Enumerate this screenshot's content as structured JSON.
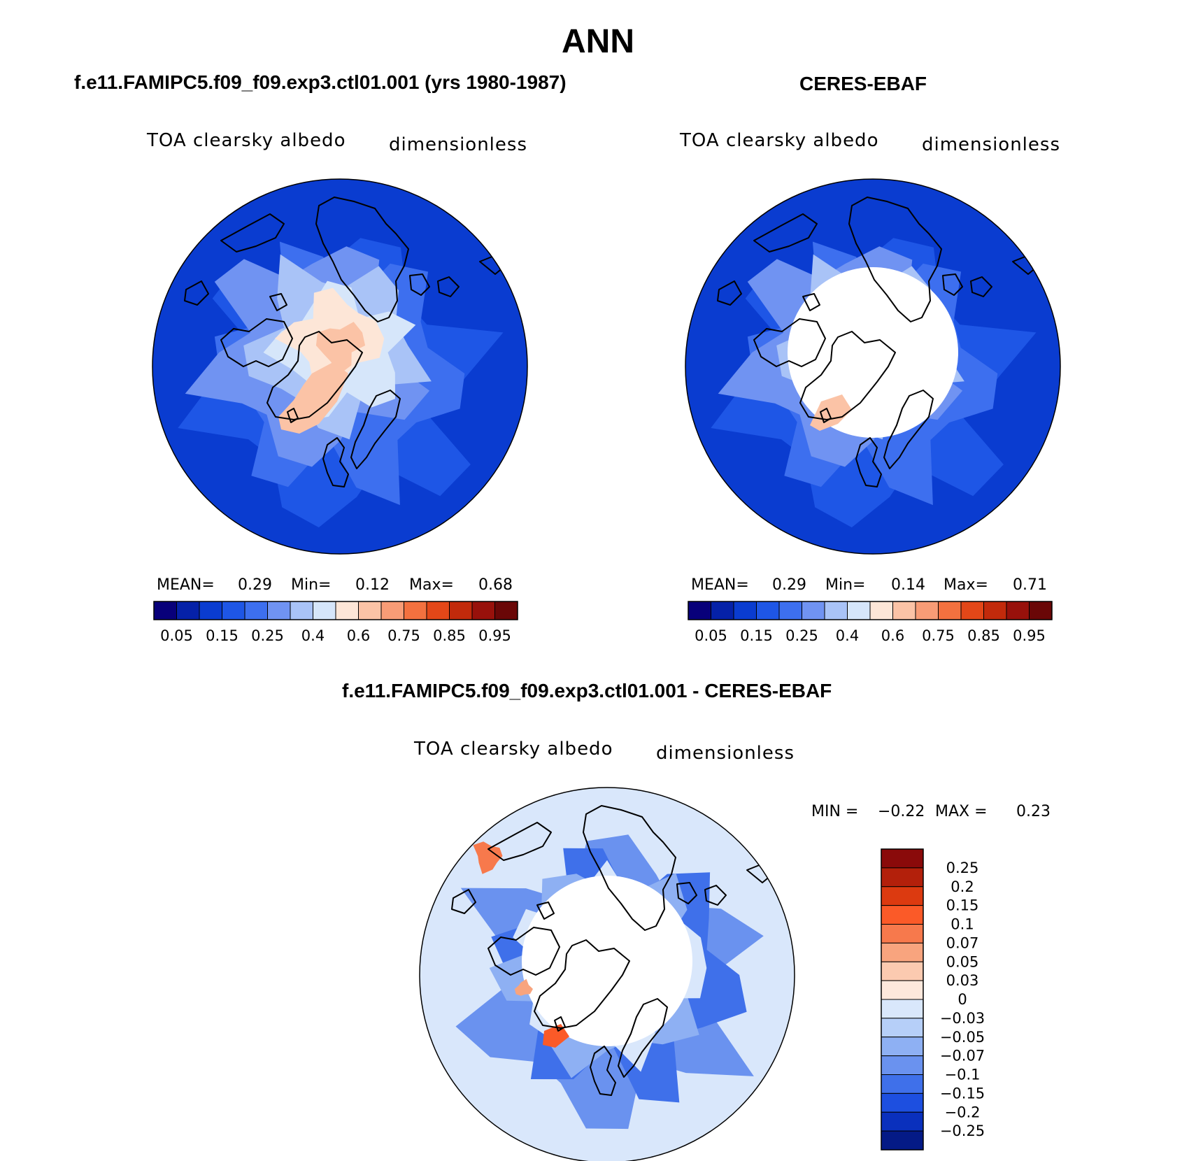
{
  "title": "ANN",
  "panels": [
    {
      "case": "f.e11.FAMIPC5.f09_f09.exp3.ctl01.001 (yrs 1980-1987)",
      "variable": "TOA clearsky albedo",
      "units": "dimensionless",
      "stats": {
        "mean_label": "MEAN=",
        "mean": "0.29",
        "min_label": "Min=",
        "min": "0.12",
        "max_label": "Max=",
        "max": "0.68"
      }
    },
    {
      "case": "CERES-EBAF",
      "variable": "TOA clearsky albedo",
      "units": "dimensionless",
      "stats": {
        "mean_label": "MEAN=",
        "mean": "0.29",
        "min_label": "Min=",
        "min": "0.14",
        "max_label": "Max=",
        "max": "0.71"
      }
    },
    {
      "case": "f.e11.FAMIPC5.f09_f09.exp3.ctl01.001 - CERES-EBAF",
      "variable": "TOA clearsky albedo",
      "units": "dimensionless",
      "stats": {
        "min_label": "MIN =",
        "min": "−0.22",
        "max_label": "MAX =",
        "max": "0.23"
      }
    }
  ],
  "chart_data": [
    {
      "type": "heatmap",
      "projection": "north polar stereographic",
      "title": "f.e11.FAMIPC5.f09_f09.exp3.ctl01.001 (yrs 1980-1987)",
      "variable": "TOA clearsky albedo",
      "units": "dimensionless",
      "mean": 0.29,
      "min": 0.12,
      "max": 0.68,
      "colorbar_orientation": "horizontal",
      "colorbar_ticks": [
        "0.05",
        "0.15",
        "0.25",
        "0.4",
        "0.6",
        "0.75",
        "0.85",
        "0.95"
      ],
      "colorbar_levels": [
        0.05,
        0.1,
        0.15,
        0.2,
        0.25,
        0.3,
        0.4,
        0.5,
        0.6,
        0.7,
        0.75,
        0.8,
        0.85,
        0.9,
        0.95
      ],
      "colors": [
        "#08007a",
        "#0521a8",
        "#0a3cd0",
        "#1e56e6",
        "#3d6fef",
        "#7093f2",
        "#a9c3f7",
        "#d6e6fa",
        "#fde6d7",
        "#fbc3a6",
        "#f89c76",
        "#f3713f",
        "#e34718",
        "#c22a0b",
        "#98110b",
        "#6a0707"
      ]
    },
    {
      "type": "heatmap",
      "projection": "north polar stereographic",
      "title": "CERES-EBAF",
      "variable": "TOA clearsky albedo",
      "units": "dimensionless",
      "mean": 0.29,
      "min": 0.14,
      "max": 0.71,
      "colorbar_orientation": "horizontal",
      "colorbar_ticks": [
        "0.05",
        "0.15",
        "0.25",
        "0.4",
        "0.6",
        "0.75",
        "0.85",
        "0.95"
      ],
      "colorbar_levels": [
        0.05,
        0.1,
        0.15,
        0.2,
        0.25,
        0.3,
        0.4,
        0.5,
        0.6,
        0.7,
        0.75,
        0.8,
        0.85,
        0.9,
        0.95
      ],
      "colors": [
        "#08007a",
        "#0521a8",
        "#0a3cd0",
        "#1e56e6",
        "#3d6fef",
        "#7093f2",
        "#a9c3f7",
        "#d6e6fa",
        "#fde6d7",
        "#fbc3a6",
        "#f89c76",
        "#f3713f",
        "#e34718",
        "#c22a0b",
        "#98110b",
        "#6a0707"
      ]
    },
    {
      "type": "heatmap",
      "projection": "north polar stereographic",
      "title": "f.e11.FAMIPC5.f09_f09.exp3.ctl01.001 - CERES-EBAF",
      "variable": "TOA clearsky albedo",
      "units": "dimensionless",
      "min": -0.22,
      "max": 0.23,
      "colorbar_orientation": "vertical",
      "colorbar_ticks": [
        "0.25",
        "0.2",
        "0.15",
        "0.1",
        "0.07",
        "0.05",
        "0.03",
        "0",
        "−0.03",
        "−0.05",
        "−0.07",
        "−0.1",
        "−0.15",
        "−0.2",
        "−0.25"
      ],
      "colors_top_to_bottom": [
        "#8a0a0a",
        "#b3200b",
        "#dc3a10",
        "#fb5a28",
        "#f7794c",
        "#f8a47e",
        "#fbcab0",
        "#fde8dc",
        "#d9e7fb",
        "#b6cff8",
        "#8eb0f3",
        "#6a92ef",
        "#3f70ea",
        "#1d4fe0",
        "#0a30bd",
        "#041a86"
      ]
    }
  ]
}
